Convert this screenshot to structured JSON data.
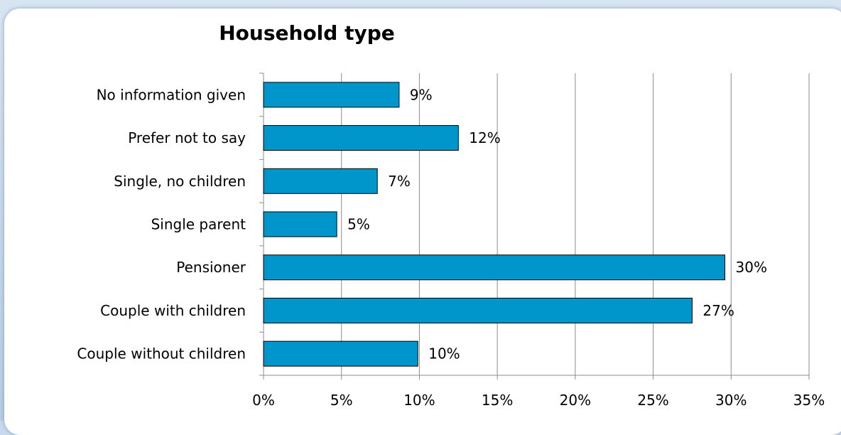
{
  "chart_data": {
    "type": "bar",
    "orientation": "horizontal",
    "title": "Household type",
    "categories": [
      "No information given",
      "Prefer not to say",
      "Single, no children",
      "Single parent",
      "Pensioner",
      "Couple with children",
      "Couple without children"
    ],
    "values": [
      8.7,
      12.5,
      7.3,
      4.7,
      29.6,
      27.5,
      9.9
    ],
    "value_labels": [
      "9%",
      "12%",
      "7%",
      "5%",
      "30%",
      "27%",
      "10%"
    ],
    "x_ticks": [
      "0%",
      "5%",
      "10%",
      "15%",
      "20%",
      "25%",
      "30%",
      "35%"
    ],
    "xlim": [
      0,
      35
    ],
    "xlabel": "",
    "ylabel": "",
    "grid": "vertical",
    "bar_color": "#0096cc",
    "bar_edge_color": "#000000"
  }
}
